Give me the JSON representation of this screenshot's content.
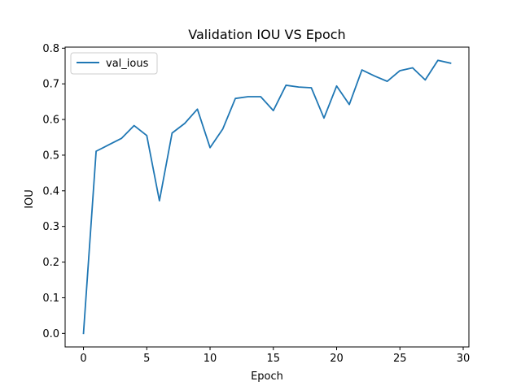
{
  "chart_data": {
    "type": "line",
    "title": "Validation IOU VS Epoch",
    "xlabel": "Epoch",
    "ylabel": "IOU",
    "xlim": [
      -1.45,
      30.45
    ],
    "ylim": [
      -0.038,
      0.803
    ],
    "xticks": [
      0,
      5,
      10,
      15,
      20,
      25,
      30
    ],
    "yticks": [
      0.0,
      0.1,
      0.2,
      0.3,
      0.4,
      0.5,
      0.6,
      0.7,
      0.8
    ],
    "xtick_labels": [
      "0",
      "5",
      "10",
      "15",
      "20",
      "25",
      "30"
    ],
    "ytick_labels": [
      "0.0",
      "0.1",
      "0.2",
      "0.3",
      "0.4",
      "0.5",
      "0.6",
      "0.7",
      "0.8"
    ],
    "grid": false,
    "legend_position": "upper-left",
    "series": [
      {
        "name": "val_ious",
        "color": "#1f77b4",
        "x": [
          0,
          1,
          2,
          3,
          4,
          5,
          6,
          7,
          8,
          9,
          10,
          11,
          12,
          13,
          14,
          15,
          16,
          17,
          18,
          19,
          20,
          21,
          22,
          23,
          24,
          25,
          26,
          27,
          28,
          29
        ],
        "values": [
          0.0,
          0.511,
          0.529,
          0.547,
          0.583,
          0.555,
          0.372,
          0.562,
          0.589,
          0.629,
          0.521,
          0.573,
          0.659,
          0.664,
          0.664,
          0.625,
          0.696,
          0.691,
          0.689,
          0.604,
          0.694,
          0.642,
          0.739,
          0.722,
          0.707,
          0.737,
          0.745,
          0.711,
          0.766,
          0.758
        ]
      }
    ]
  }
}
